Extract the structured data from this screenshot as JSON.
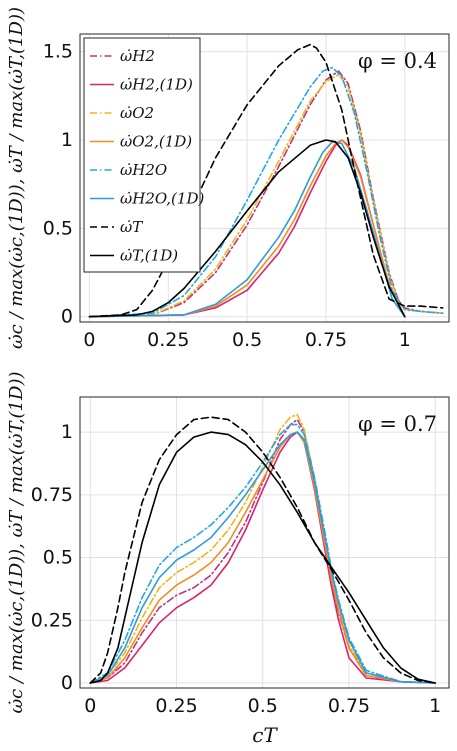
{
  "chart_data": [
    {
      "type": "line",
      "panel": "top",
      "annotation": "φ = 0.4",
      "xlabel": "",
      "ylabel": "ω̇c / max(ω̇c,(1D)), ω̇T / max(ω̇T,(1D))",
      "xlim": [
        -0.03,
        1.14
      ],
      "ylim": [
        -0.03,
        1.6
      ],
      "xticks": [
        "0",
        "0.25",
        "0.5",
        "0.75",
        "1"
      ],
      "yticks": [
        "0",
        "0.5",
        "1",
        "1.5"
      ],
      "grid": true,
      "legend_position": "top-left",
      "series": [
        {
          "name": "ω̇H2",
          "color": "#c0357a",
          "dash": "dashdot",
          "x": [
            0,
            0.2,
            0.3,
            0.4,
            0.5,
            0.6,
            0.7,
            0.75,
            0.79,
            0.82,
            0.86,
            0.9,
            0.95,
            0.98,
            1.0,
            1.05,
            1.12
          ],
          "y": [
            0,
            0.01,
            0.08,
            0.25,
            0.52,
            0.85,
            1.2,
            1.34,
            1.39,
            1.32,
            1.05,
            0.67,
            0.25,
            0.09,
            0.05,
            0.03,
            0.02
          ]
        },
        {
          "name": "ω̇H2,(1D)",
          "color": "#e0206a",
          "dash": "solid",
          "x": [
            0,
            0.3,
            0.4,
            0.5,
            0.6,
            0.65,
            0.7,
            0.75,
            0.78,
            0.8,
            0.82,
            0.86,
            0.9,
            0.95,
            1.0
          ],
          "y": [
            0,
            0.01,
            0.05,
            0.15,
            0.36,
            0.51,
            0.7,
            0.88,
            0.97,
            1.0,
            0.97,
            0.8,
            0.52,
            0.18,
            0
          ]
        },
        {
          "name": "ω̇O2",
          "color": "#f5b21a",
          "dash": "dashdot",
          "x": [
            0,
            0.2,
            0.3,
            0.4,
            0.5,
            0.6,
            0.7,
            0.75,
            0.79,
            0.82,
            0.86,
            0.9,
            0.95,
            0.98,
            1.0,
            1.05,
            1.12
          ],
          "y": [
            0,
            0.01,
            0.09,
            0.27,
            0.55,
            0.88,
            1.22,
            1.33,
            1.37,
            1.3,
            1.03,
            0.66,
            0.24,
            0.08,
            0.04,
            0.03,
            0.02
          ]
        },
        {
          "name": "ω̇O2,(1D)",
          "color": "#f28c1e",
          "dash": "solid",
          "x": [
            0,
            0.3,
            0.4,
            0.5,
            0.6,
            0.65,
            0.7,
            0.75,
            0.78,
            0.8,
            0.82,
            0.86,
            0.9,
            0.95,
            1.0
          ],
          "y": [
            0,
            0.01,
            0.06,
            0.18,
            0.4,
            0.55,
            0.74,
            0.91,
            0.98,
            1.0,
            0.96,
            0.79,
            0.52,
            0.18,
            0
          ]
        },
        {
          "name": "ω̇H2O",
          "color": "#22a9e0",
          "dash": "dashdot",
          "x": [
            0,
            0.2,
            0.3,
            0.4,
            0.5,
            0.6,
            0.7,
            0.74,
            0.77,
            0.8,
            0.84,
            0.88,
            0.92,
            0.96,
            1.0,
            1.05,
            1.12
          ],
          "y": [
            0,
            0.02,
            0.12,
            0.34,
            0.66,
            1.0,
            1.3,
            1.39,
            1.41,
            1.36,
            1.15,
            0.82,
            0.46,
            0.15,
            0.04,
            0.03,
            0.02
          ]
        },
        {
          "name": "ω̇H2O,(1D)",
          "color": "#2e9bdc",
          "dash": "solid",
          "x": [
            0,
            0.3,
            0.4,
            0.5,
            0.6,
            0.65,
            0.7,
            0.74,
            0.77,
            0.8,
            0.84,
            0.88,
            0.92,
            0.96,
            1.0
          ],
          "y": [
            0,
            0.01,
            0.07,
            0.21,
            0.45,
            0.6,
            0.79,
            0.93,
            0.99,
            0.98,
            0.84,
            0.6,
            0.35,
            0.1,
            0
          ]
        },
        {
          "name": "ω̇T",
          "color": "#000000",
          "dash": "dashed",
          "x": [
            0,
            0.1,
            0.15,
            0.2,
            0.25,
            0.3,
            0.4,
            0.5,
            0.6,
            0.66,
            0.7,
            0.72,
            0.75,
            0.8,
            0.85,
            0.9,
            0.95,
            1.0,
            1.05,
            1.12
          ],
          "y": [
            0,
            0.01,
            0.04,
            0.15,
            0.32,
            0.52,
            0.9,
            1.2,
            1.42,
            1.51,
            1.54,
            1.52,
            1.44,
            1.17,
            0.75,
            0.35,
            0.1,
            0.06,
            0.06,
            0.05
          ]
        },
        {
          "name": "ω̇T,(1D)",
          "color": "#000000",
          "dash": "solid",
          "x": [
            0,
            0.15,
            0.2,
            0.25,
            0.3,
            0.4,
            0.5,
            0.6,
            0.7,
            0.75,
            0.78,
            0.82,
            0.86,
            0.9,
            0.95,
            1.0
          ],
          "y": [
            0,
            0.01,
            0.03,
            0.08,
            0.16,
            0.37,
            0.6,
            0.82,
            0.97,
            1.0,
            0.99,
            0.9,
            0.7,
            0.45,
            0.17,
            0
          ]
        }
      ]
    },
    {
      "type": "line",
      "panel": "bottom",
      "annotation": "φ = 0.7",
      "xlabel": "cT",
      "ylabel": "ω̇c / max(ω̇c,(1D)), ω̇T / max(ω̇T,(1D))",
      "xlim": [
        -0.03,
        1.04
      ],
      "ylim": [
        -0.02,
        1.14
      ],
      "xticks": [
        "0",
        "0.25",
        "0.5",
        "0.75",
        "1"
      ],
      "yticks": [
        "0",
        "0.25",
        "0.5",
        "0.75",
        "1"
      ],
      "grid": true,
      "series": [
        {
          "name": "ω̇H2",
          "color": "#c0357a",
          "dash": "dashdot",
          "x": [
            0,
            0.05,
            0.1,
            0.15,
            0.2,
            0.25,
            0.3,
            0.35,
            0.4,
            0.45,
            0.5,
            0.55,
            0.58,
            0.6,
            0.62,
            0.65,
            0.68,
            0.7,
            0.72,
            0.75,
            0.8,
            0.9,
            1.0
          ],
          "y": [
            0,
            0.02,
            0.08,
            0.2,
            0.3,
            0.35,
            0.38,
            0.43,
            0.52,
            0.64,
            0.8,
            0.97,
            1.03,
            1.05,
            1.0,
            0.8,
            0.55,
            0.4,
            0.28,
            0.14,
            0.03,
            0.005,
            0
          ]
        },
        {
          "name": "ω̇H2,(1D)",
          "color": "#e0206a",
          "dash": "solid",
          "x": [
            0,
            0.05,
            0.1,
            0.15,
            0.2,
            0.25,
            0.3,
            0.35,
            0.4,
            0.45,
            0.5,
            0.55,
            0.58,
            0.6,
            0.62,
            0.65,
            0.68,
            0.7,
            0.72,
            0.75,
            0.8,
            0.9,
            1.0
          ],
          "y": [
            0,
            0.01,
            0.06,
            0.15,
            0.24,
            0.3,
            0.34,
            0.39,
            0.48,
            0.61,
            0.77,
            0.92,
            0.98,
            1.0,
            0.96,
            0.77,
            0.53,
            0.38,
            0.25,
            0.1,
            0.02,
            0.005,
            0
          ]
        },
        {
          "name": "ω̇O2",
          "color": "#f5b21a",
          "dash": "dashdot",
          "x": [
            0,
            0.05,
            0.1,
            0.15,
            0.2,
            0.25,
            0.3,
            0.35,
            0.4,
            0.45,
            0.5,
            0.55,
            0.58,
            0.6,
            0.62,
            0.65,
            0.68,
            0.7,
            0.72,
            0.75,
            0.8,
            0.9,
            1.0
          ],
          "y": [
            0,
            0.03,
            0.12,
            0.26,
            0.38,
            0.44,
            0.48,
            0.53,
            0.61,
            0.72,
            0.86,
            1.01,
            1.06,
            1.07,
            1.01,
            0.82,
            0.58,
            0.43,
            0.3,
            0.15,
            0.04,
            0.005,
            0
          ]
        },
        {
          "name": "ω̇O2,(1D)",
          "color": "#f28c1e",
          "dash": "solid",
          "x": [
            0,
            0.05,
            0.1,
            0.15,
            0.2,
            0.25,
            0.3,
            0.35,
            0.4,
            0.45,
            0.5,
            0.55,
            0.58,
            0.6,
            0.62,
            0.65,
            0.68,
            0.7,
            0.72,
            0.75,
            0.8,
            0.9,
            1.0
          ],
          "y": [
            0,
            0.02,
            0.1,
            0.22,
            0.33,
            0.39,
            0.43,
            0.48,
            0.56,
            0.68,
            0.81,
            0.94,
            0.99,
            1.0,
            0.96,
            0.78,
            0.55,
            0.41,
            0.29,
            0.14,
            0.03,
            0.005,
            0
          ]
        },
        {
          "name": "ω̇H2O",
          "color": "#22a9e0",
          "dash": "dashdot",
          "x": [
            0,
            0.05,
            0.1,
            0.15,
            0.2,
            0.25,
            0.3,
            0.35,
            0.4,
            0.45,
            0.5,
            0.55,
            0.58,
            0.6,
            0.62,
            0.65,
            0.68,
            0.7,
            0.72,
            0.75,
            0.8,
            0.9,
            1.0
          ],
          "y": [
            0,
            0.04,
            0.17,
            0.34,
            0.47,
            0.54,
            0.58,
            0.63,
            0.7,
            0.78,
            0.88,
            0.99,
            1.03,
            1.03,
            0.99,
            0.82,
            0.6,
            0.45,
            0.33,
            0.18,
            0.05,
            0.005,
            0
          ]
        },
        {
          "name": "ω̇H2O,(1D)",
          "color": "#2e9bdc",
          "dash": "solid",
          "x": [
            0,
            0.05,
            0.1,
            0.15,
            0.2,
            0.25,
            0.3,
            0.35,
            0.4,
            0.45,
            0.5,
            0.55,
            0.58,
            0.6,
            0.62,
            0.65,
            0.68,
            0.7,
            0.72,
            0.75,
            0.8,
            0.9,
            1.0
          ],
          "y": [
            0,
            0.03,
            0.14,
            0.3,
            0.42,
            0.49,
            0.53,
            0.58,
            0.66,
            0.75,
            0.85,
            0.95,
            0.99,
            1.0,
            0.97,
            0.8,
            0.58,
            0.44,
            0.32,
            0.17,
            0.04,
            0.005,
            0
          ]
        },
        {
          "name": "ω̇T",
          "color": "#000000",
          "dash": "dashed",
          "x": [
            0,
            0.03,
            0.05,
            0.08,
            0.1,
            0.15,
            0.2,
            0.25,
            0.3,
            0.35,
            0.4,
            0.45,
            0.5,
            0.55,
            0.6,
            0.65,
            0.7,
            0.75,
            0.8,
            0.85,
            0.9,
            0.95,
            1.0
          ],
          "y": [
            0,
            0.04,
            0.12,
            0.3,
            0.44,
            0.72,
            0.89,
            0.99,
            1.05,
            1.06,
            1.05,
            1.0,
            0.92,
            0.82,
            0.7,
            0.56,
            0.45,
            0.33,
            0.2,
            0.1,
            0.04,
            0.01,
            0
          ]
        },
        {
          "name": "ω̇T,(1D)",
          "color": "#000000",
          "dash": "solid",
          "x": [
            0,
            0.03,
            0.05,
            0.08,
            0.1,
            0.15,
            0.2,
            0.25,
            0.3,
            0.35,
            0.4,
            0.45,
            0.5,
            0.55,
            0.6,
            0.65,
            0.7,
            0.75,
            0.8,
            0.85,
            0.9,
            0.95,
            1.0
          ],
          "y": [
            0,
            0.01,
            0.04,
            0.14,
            0.26,
            0.56,
            0.79,
            0.92,
            0.98,
            1.0,
            0.99,
            0.95,
            0.88,
            0.79,
            0.68,
            0.56,
            0.46,
            0.36,
            0.25,
            0.14,
            0.06,
            0.015,
            0
          ]
        }
      ]
    }
  ],
  "legend": {
    "position": "top-left",
    "entries": [
      "ω̇H2",
      "ω̇H2,(1D)",
      "ω̇O2",
      "ω̇O2,(1D)",
      "ω̇H2O",
      "ω̇H2O,(1D)",
      "ω̇T",
      "ω̇T,(1D)"
    ]
  }
}
